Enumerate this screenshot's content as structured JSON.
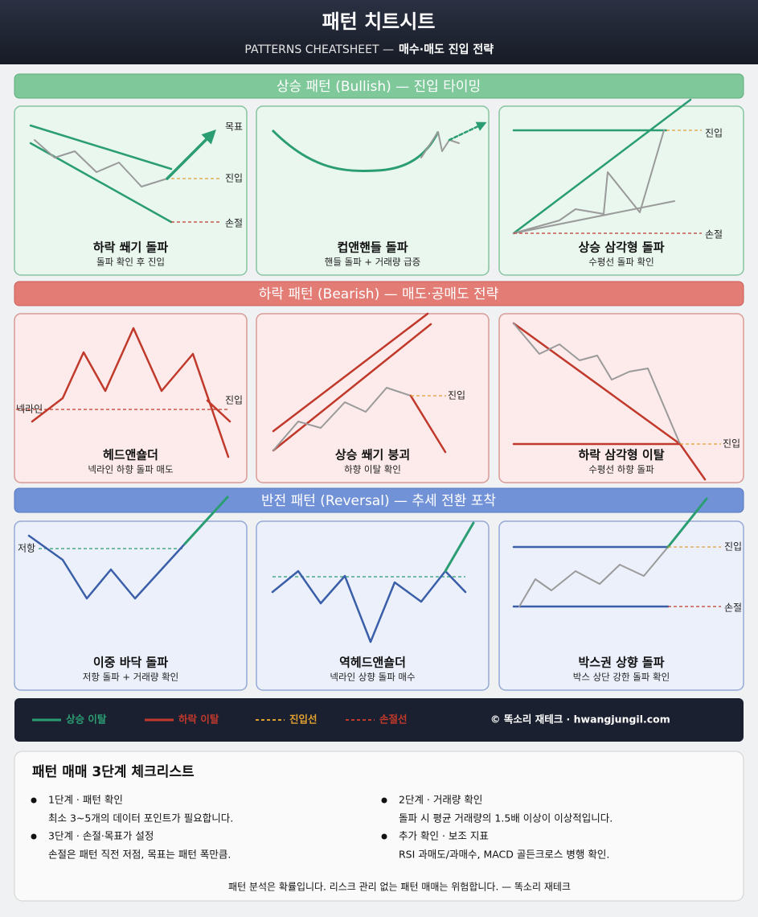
{
  "header": {
    "title": "패턴 치트시트",
    "subtitle_en": "PATTERNS CHEATSHEET —",
    "subtitle_ko": "매수·매도 진입 전략"
  },
  "sections": [
    {
      "title": "상승 패턴 (Bullish) — 진입 타이밍",
      "cards": [
        {
          "name": "하락 쐐기 돌파",
          "desc": "돌파 확인 후 진입",
          "labels": [
            "목표",
            "진입",
            "손절"
          ]
        },
        {
          "name": "컵앤핸들 돌파",
          "desc": "핸들 돌파 + 거래량 급증",
          "labels": []
        },
        {
          "name": "상승 삼각형 돌파",
          "desc": "수평선 돌파 확인",
          "labels": [
            "진입",
            "손절"
          ]
        }
      ]
    },
    {
      "title": "하락 패턴 (Bearish) — 매도·공매도 전략",
      "cards": [
        {
          "name": "헤드앤숄더",
          "desc": "넥라인 하향 돌파 매도",
          "labels": [
            "넥라인",
            "진입"
          ]
        },
        {
          "name": "상승 쐐기 붕괴",
          "desc": "하향 이탈 확인",
          "labels": [
            "진입"
          ]
        },
        {
          "name": "하락 삼각형 이탈",
          "desc": "수평선 하향 돌파",
          "labels": [
            "진입"
          ]
        }
      ]
    },
    {
      "title": "반전 패턴 (Reversal) — 추세 전환 포착",
      "cards": [
        {
          "name": "이중 바닥 돌파",
          "desc": "저항 돌파 + 거래량 확인",
          "labels": [
            "저항"
          ]
        },
        {
          "name": "역헤드앤숄더",
          "desc": "넥라인 상향 돌파 매수",
          "labels": []
        },
        {
          "name": "박스권 상향 돌파",
          "desc": "박스 상단 강한 돌파 확인",
          "labels": [
            "진입",
            "손절"
          ]
        }
      ]
    }
  ],
  "legend": {
    "items": [
      "상승 이탈",
      "하락 이탈",
      "진입선",
      "손절선"
    ],
    "credit": "© 똑소리 재테크 · hwangjungil.com"
  },
  "checklist": {
    "title": "패턴 매매 3단계 체크리스트",
    "items": [
      {
        "head": "1단계 · 패턴 확인",
        "body": "최소 3~5개의 데이터 포인트가 필요합니다."
      },
      {
        "head": "2단계 · 거래량 확인",
        "body": "돌파 시 평균 거래량의 1.5배 이상이 이상적입니다."
      },
      {
        "head": "3단계 · 손절·목표가 설정",
        "body": "손절은 패턴 직전 저점, 목표는 패턴 폭만큼."
      },
      {
        "head": "추가 확인 · 보조 지표",
        "body": "RSI 과매도/과매수, MACD 골든크로스 병행 확인."
      }
    ],
    "footer": "패턴 분석은 확률입니다. 리스크 관리 없는 패턴 매매는 위험합니다. — 똑소리 재테크"
  }
}
